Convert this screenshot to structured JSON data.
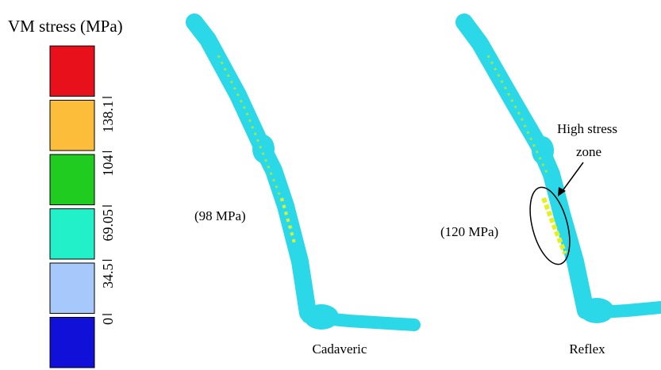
{
  "colorbar": {
    "title": "VM stress (MPa)",
    "colors": [
      "#e8101a",
      "#fbbd3a",
      "#1fcc1f",
      "#22f0c8",
      "#a6c8fb",
      "#1010d8"
    ],
    "labels": [
      "138.1",
      "104",
      "69.05",
      "34.5",
      "0"
    ]
  },
  "models": [
    {
      "label": "Cadaveric",
      "peak": "(98 MPa)"
    },
    {
      "label": "Reflex",
      "peak": "(120 MPa)",
      "note": [
        "High stress",
        "zone"
      ]
    }
  ]
}
